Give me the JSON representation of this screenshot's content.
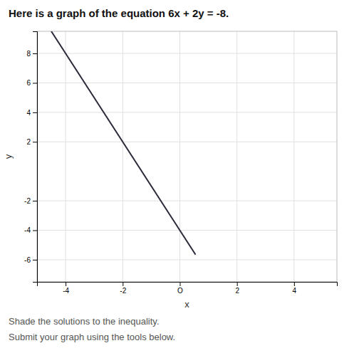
{
  "chart_data": {
    "type": "line",
    "title": "Here is a graph of the equation 6x + 2y = -8.",
    "subtitle": [
      "Shade the solutions to the inequality.",
      "Submit your graph using the tools below."
    ],
    "x_label": "x",
    "y_label": "y",
    "x": [
      -4.5,
      0.55
    ],
    "values": [
      9.5,
      -5.65
    ],
    "color": "#2a2a3a",
    "xlim": [
      -5,
      5.5
    ],
    "ylim": [
      -7.5,
      9.5
    ],
    "xticks": [
      -4,
      -2,
      {
        "value": 0,
        "label": "O"
      },
      2,
      4
    ],
    "yticks": [
      -6,
      -4,
      -2,
      2,
      4,
      6,
      8
    ],
    "grid": true
  }
}
